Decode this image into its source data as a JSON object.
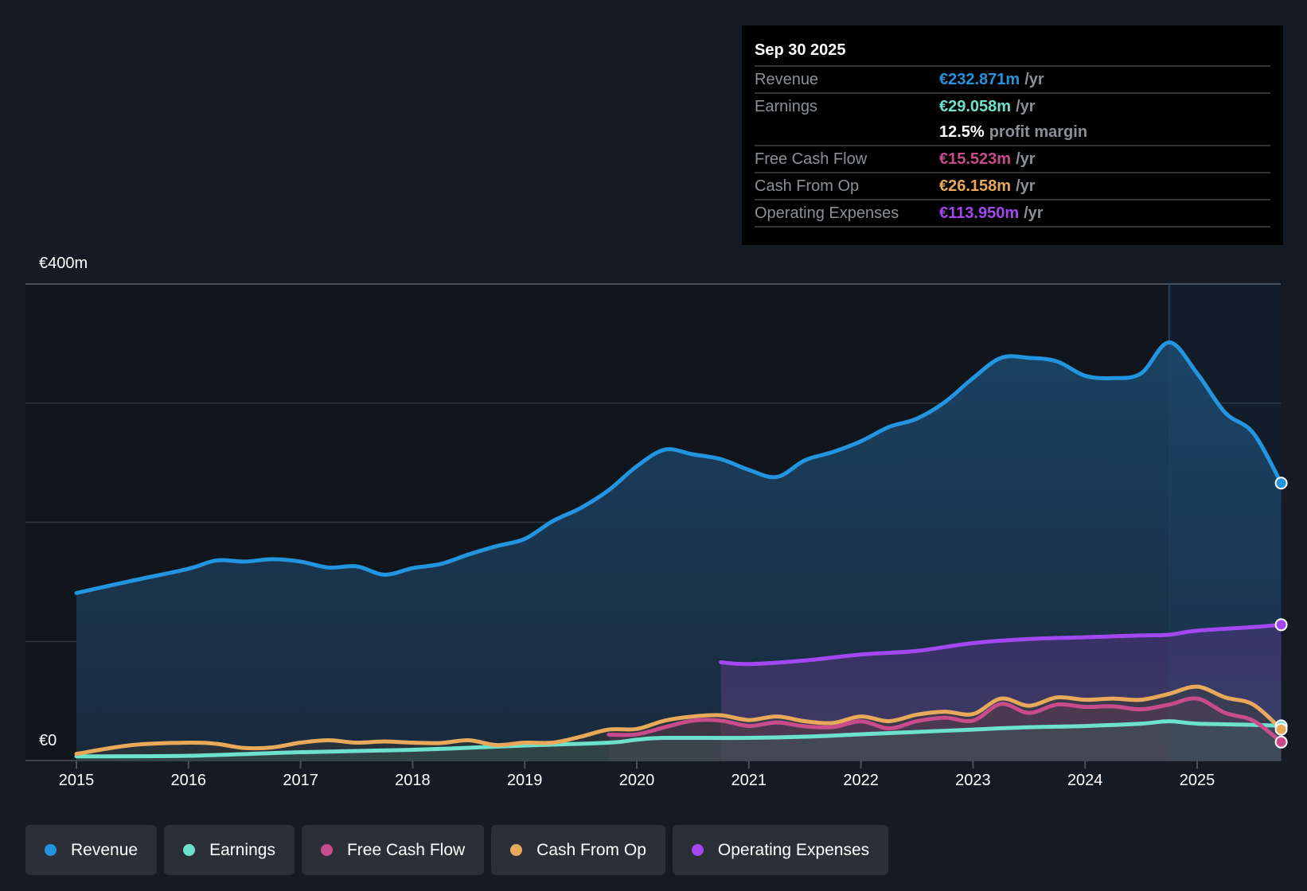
{
  "tooltip": {
    "date": "Sep 30 2025",
    "rows": [
      {
        "label": "Revenue",
        "value": "€232.871m",
        "unit": "/yr",
        "color": "#2394df"
      },
      {
        "label": "Earnings",
        "value": "€29.058m",
        "unit": "/yr",
        "color": "#6ee1cc"
      },
      {
        "label": "",
        "value": "12.5%",
        "unit": "profit margin",
        "color": "#ffffff"
      },
      {
        "label": "Free Cash Flow",
        "value": "€15.523m",
        "unit": "/yr",
        "color": "#c84b8b"
      },
      {
        "label": "Cash From Op",
        "value": "€26.158m",
        "unit": "/yr",
        "color": "#e8a95b"
      },
      {
        "label": "Operating Expenses",
        "value": "€113.950m",
        "unit": "/yr",
        "color": "#a347f0"
      }
    ]
  },
  "legend": [
    {
      "label": "Revenue",
      "color": "#2394df"
    },
    {
      "label": "Earnings",
      "color": "#6ee1cc"
    },
    {
      "label": "Free Cash Flow",
      "color": "#c84b8b"
    },
    {
      "label": "Cash From Op",
      "color": "#e8a95b"
    },
    {
      "label": "Operating Expenses",
      "color": "#a347f0"
    }
  ],
  "chart_data": {
    "type": "area",
    "title": "",
    "xlabel": "",
    "ylabel": "",
    "y_tick_labels": [
      "€400m",
      "€0"
    ],
    "ylim": [
      0,
      400
    ],
    "xlim": [
      2015,
      2025.75
    ],
    "x_tick_labels": [
      "2015",
      "2016",
      "2017",
      "2018",
      "2019",
      "2020",
      "2021",
      "2022",
      "2023",
      "2024",
      "2025"
    ],
    "grid": true,
    "highlight_start": 2024.75,
    "series": [
      {
        "name": "Revenue",
        "color": "#2394df",
        "x": [
          2015,
          2015.5,
          2016,
          2016.25,
          2016.5,
          2016.75,
          2017,
          2017.25,
          2017.5,
          2017.75,
          2018,
          2018.25,
          2018.5,
          2018.75,
          2019,
          2019.25,
          2019.5,
          2019.75,
          2020,
          2020.25,
          2020.5,
          2020.75,
          2021,
          2021.25,
          2021.5,
          2021.75,
          2022,
          2022.25,
          2022.5,
          2022.75,
          2023,
          2023.25,
          2023.5,
          2023.75,
          2024,
          2024.25,
          2024.5,
          2024.75,
          2025,
          2025.25,
          2025.5,
          2025.75
        ],
        "values": [
          140.6,
          151,
          161,
          168,
          167,
          169,
          167,
          162,
          163,
          156,
          161.5,
          165,
          173,
          180,
          186,
          201,
          212,
          227,
          247,
          261,
          257,
          253,
          244,
          238,
          252,
          259,
          268,
          280,
          287,
          301,
          321,
          338,
          338,
          335,
          323,
          321,
          325,
          351,
          325,
          292,
          275,
          232.9
        ]
      },
      {
        "name": "Earnings",
        "color": "#6ee1cc",
        "x": [
          2015,
          2016,
          2017,
          2018,
          2019,
          2019.75,
          2020,
          2020.25,
          2021,
          2021.5,
          2022,
          2022.5,
          2023,
          2023.5,
          2024,
          2024.5,
          2024.75,
          2025,
          2025.5,
          2025.75
        ],
        "values": [
          3.5,
          4,
          7,
          9,
          12.6,
          15,
          17.5,
          19,
          19,
          20,
          22,
          24,
          26,
          28,
          29,
          31,
          33,
          31,
          30,
          29.1
        ]
      },
      {
        "name": "Free Cash Flow",
        "color": "#c84b8b",
        "x": [
          2019.75,
          2020,
          2020.25,
          2020.5,
          2020.75,
          2021,
          2021.25,
          2021.5,
          2021.75,
          2022,
          2022.25,
          2022.5,
          2022.75,
          2023,
          2023.25,
          2023.5,
          2023.75,
          2024,
          2024.25,
          2024.5,
          2024.75,
          2025,
          2025.25,
          2025.5,
          2025.75
        ],
        "values": [
          21.7,
          22,
          28,
          33.5,
          33.5,
          29,
          32,
          28.7,
          28,
          33,
          27,
          33,
          36,
          33.5,
          47.5,
          40,
          47,
          45,
          45.5,
          43,
          47,
          52,
          40,
          33.5,
          15.5
        ]
      },
      {
        "name": "Cash From Op",
        "color": "#e8a95b",
        "x": [
          2015,
          2015.5,
          2016,
          2016.25,
          2016.5,
          2016.75,
          2017,
          2017.25,
          2017.5,
          2017.75,
          2018,
          2018.25,
          2018.5,
          2018.75,
          2019,
          2019.25,
          2019.5,
          2019.75,
          2020,
          2020.25,
          2020.5,
          2020.75,
          2021,
          2021.25,
          2021.5,
          2021.75,
          2022,
          2022.25,
          2022.5,
          2022.75,
          2023,
          2023.25,
          2023.5,
          2023.75,
          2024,
          2024.25,
          2024.5,
          2024.75,
          2025,
          2025.25,
          2025.5,
          2025.75
        ],
        "values": [
          5.6,
          13,
          15,
          14,
          10.5,
          11,
          15,
          17,
          15,
          16,
          15,
          14.7,
          17,
          13,
          15,
          15,
          20,
          26,
          26.5,
          33.5,
          37,
          38,
          34,
          37,
          33,
          31.5,
          37,
          33,
          38.5,
          41,
          39,
          52,
          46,
          53,
          51,
          52,
          51,
          56,
          62,
          53,
          47,
          26.2
        ]
      },
      {
        "name": "Operating Expenses",
        "color": "#a347f0",
        "x": [
          2020.75,
          2021,
          2021.5,
          2022,
          2022.5,
          2023,
          2023.5,
          2024,
          2024.5,
          2024.75,
          2025,
          2025.5,
          2025.75
        ],
        "values": [
          82.5,
          81,
          84,
          89,
          92,
          98.6,
          102,
          103.5,
          105,
          105.6,
          109,
          112,
          114
        ]
      }
    ]
  }
}
